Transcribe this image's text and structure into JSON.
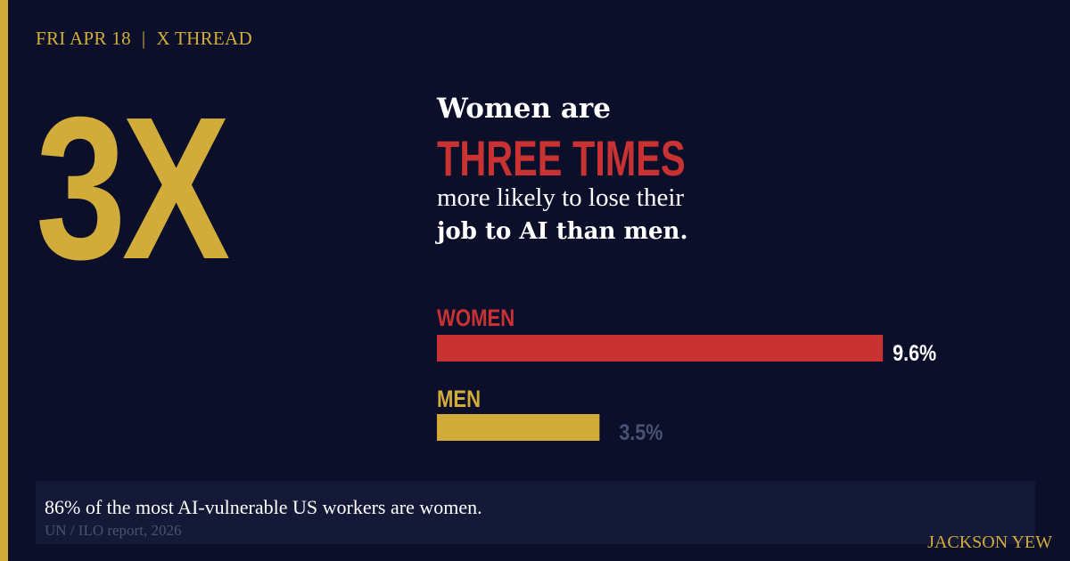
{
  "header": {
    "date": "FRI APR 18",
    "separator": "|",
    "channel": "X THREAD"
  },
  "big_stat": "3X",
  "headline": {
    "line1": "Women are",
    "line2": "THREE TIMES",
    "line3": "more likely to lose their",
    "line4": "job to AI than men."
  },
  "chart_data": {
    "type": "bar",
    "orientation": "horizontal",
    "categories": [
      "WOMEN",
      "MEN"
    ],
    "values": [
      9.6,
      3.5
    ],
    "value_labels": [
      "9.6%",
      "3.5%"
    ],
    "unit": "%",
    "colors": [
      "#c93232",
      "#d2ac3a"
    ]
  },
  "caption": {
    "text": "86% of the most AI-vulnerable US workers are women.",
    "source": "UN / ILO report, 2026"
  },
  "author": "JACKSON YEW",
  "colors": {
    "background": "#0b0f2a",
    "gold": "#d2ac3a",
    "red": "#c93232",
    "caption_bg": "#141937",
    "muted": "#4a5272"
  }
}
